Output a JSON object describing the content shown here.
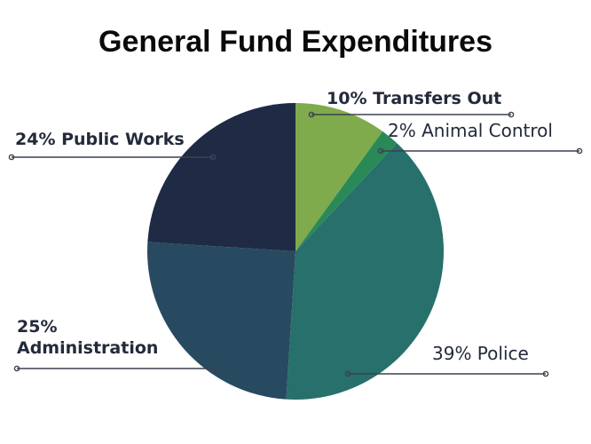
{
  "title": "General Fund Expenditures",
  "chart_data": {
    "type": "pie",
    "title": "General Fund Expenditures",
    "categories": [
      "Transfers Out",
      "Animal Control",
      "Police",
      "Administration",
      "Public Works"
    ],
    "values": [
      10,
      2,
      39,
      25,
      24
    ],
    "unit": "%",
    "colors": [
      "#7fab4d",
      "#2a8a57",
      "#27706b",
      "#274a60",
      "#1f2b44"
    ],
    "start_angle": "12 o'clock",
    "direction": "clockwise",
    "labels": [
      {
        "line1": "10% Transfers Out",
        "line2": ""
      },
      {
        "line1": "2% Animal Control",
        "line2": ""
      },
      {
        "line1": "39% Police",
        "line2": ""
      },
      {
        "line1": "25%",
        "line2": "Administration"
      },
      {
        "line1": "24% Public Works",
        "line2": ""
      }
    ],
    "legend": "none (leader-line labels)"
  },
  "style": {
    "leader_color": "#3c4150",
    "label_color": "#232a3a"
  }
}
